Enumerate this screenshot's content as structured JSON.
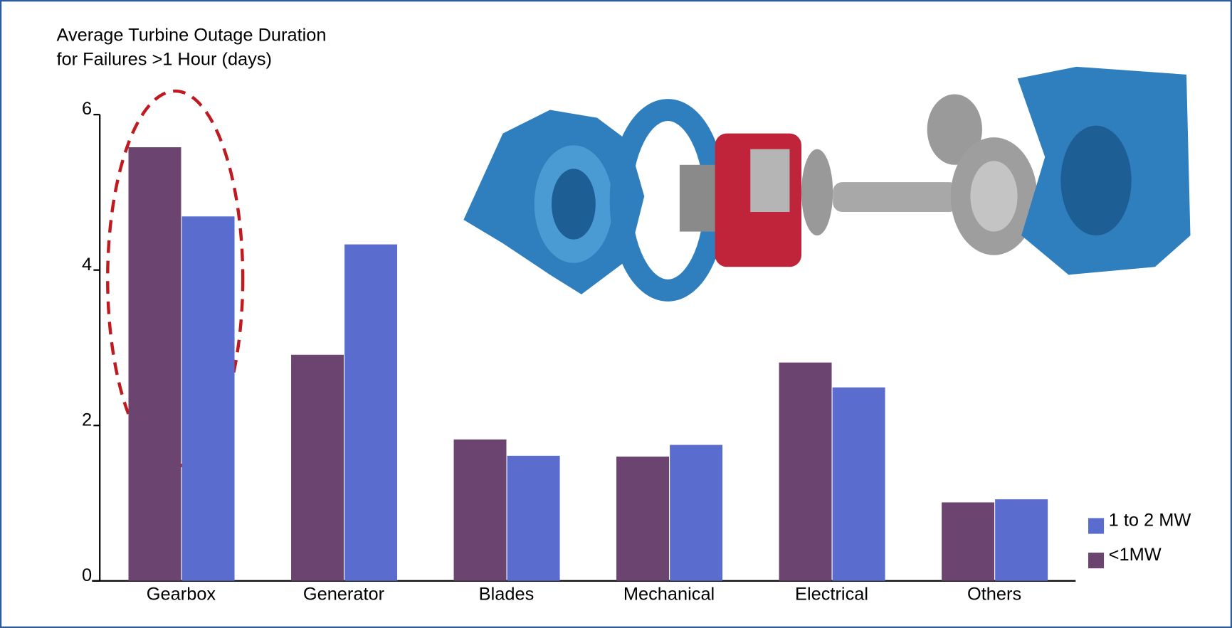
{
  "chart_data": {
    "type": "bar",
    "ylabel": [
      "Average Turbine Outage Duration",
      "for Failures >1 Hour (days)"
    ],
    "categories": [
      "Gearbox",
      "Generator",
      "Blades",
      "Mechanical",
      "Electrical",
      "Others"
    ],
    "series": [
      {
        "name": "<1MW",
        "color": "#6b456f",
        "values": [
          5.58,
          2.91,
          1.82,
          1.6,
          2.81,
          1.01
        ]
      },
      {
        "name": "1 to 2 MW",
        "color": "#5a6dcf",
        "values": [
          4.69,
          4.33,
          1.61,
          1.75,
          2.49,
          1.05
        ]
      }
    ],
    "ylim": [
      0,
      6
    ],
    "yticks": [
      0,
      2,
      4,
      6
    ],
    "grid": false
  }
}
